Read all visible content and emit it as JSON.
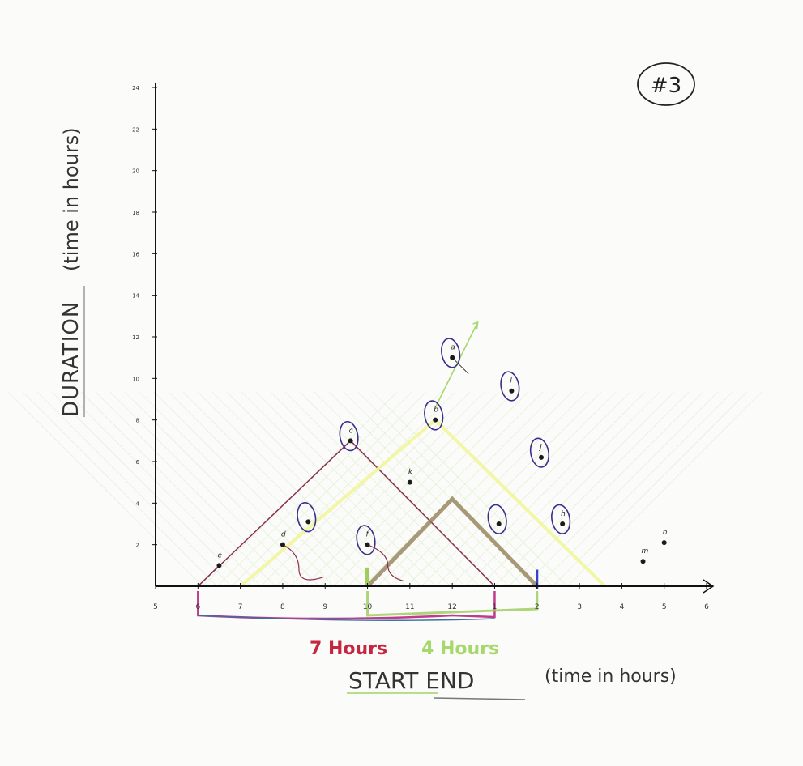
{
  "page_tag": "#3",
  "colors": {
    "axis": "#111111",
    "pen_points": "#1b1b1b",
    "point_ring": "#3a2d8c",
    "pink_lines": "#8a3050",
    "yellow_lines": "#f2f59a",
    "green_marker": "#9ccc5a",
    "brown_bar": "#8c7a4e",
    "red_label": "#c4273f",
    "green_label": "#a7d86c",
    "gridline": "#d8ebc4"
  },
  "chart_data": {
    "type": "scatter",
    "title": "",
    "xlabel_main": "START END",
    "xlabel_unit": "(time in hours)",
    "ylabel_main": "DURATION",
    "ylabel_unit": "(time in hours)",
    "x_ticks": [
      "5",
      "6",
      "7",
      "8",
      "9",
      "10",
      "11",
      "12",
      "1",
      "2",
      "3",
      "4",
      "5",
      "6"
    ],
    "x_tick_values": [
      5,
      6,
      7,
      8,
      9,
      10,
      11,
      12,
      13,
      14,
      15,
      16,
      17,
      18
    ],
    "y_ticks": [
      "2",
      "4",
      "6",
      "8",
      "10",
      "12",
      "14",
      "16",
      "18",
      "20",
      "22",
      "24"
    ],
    "y_tick_values": [
      2,
      4,
      6,
      8,
      10,
      12,
      14,
      16,
      18,
      20,
      22,
      24
    ],
    "xlim": [
      5,
      18
    ],
    "ylim": [
      0,
      24
    ],
    "points": [
      {
        "label": "e",
        "x": 6.5,
        "y": 1.0,
        "ring": false
      },
      {
        "label": "d",
        "x": 8.0,
        "y": 2.0,
        "ring": false
      },
      {
        "label": "",
        "x": 8.6,
        "y": 3.1,
        "ring": true
      },
      {
        "label": "f",
        "x": 10.0,
        "y": 2.0,
        "ring": true
      },
      {
        "label": "c",
        "x": 9.6,
        "y": 7.0,
        "ring": true
      },
      {
        "label": "k",
        "x": 11.0,
        "y": 5.0,
        "ring": false
      },
      {
        "label": "b",
        "x": 11.6,
        "y": 8.0,
        "ring": true
      },
      {
        "label": "a",
        "x": 12.0,
        "y": 11.0,
        "ring": true
      },
      {
        "label": "l",
        "x": 13.4,
        "y": 9.4,
        "ring": true
      },
      {
        "label": "",
        "x": 13.1,
        "y": 3.0,
        "ring": true
      },
      {
        "label": "j",
        "x": 14.1,
        "y": 6.2,
        "ring": true
      },
      {
        "label": "h",
        "x": 14.6,
        "y": 3.0,
        "ring": true
      },
      {
        "label": "m",
        "x": 16.5,
        "y": 1.2,
        "ring": false
      },
      {
        "label": "n",
        "x": 17.0,
        "y": 2.1,
        "ring": false
      }
    ],
    "span_labels": [
      {
        "text": "7 Hours"
      },
      {
        "text": "4 Hours"
      }
    ],
    "grid": false,
    "legend": "none"
  }
}
